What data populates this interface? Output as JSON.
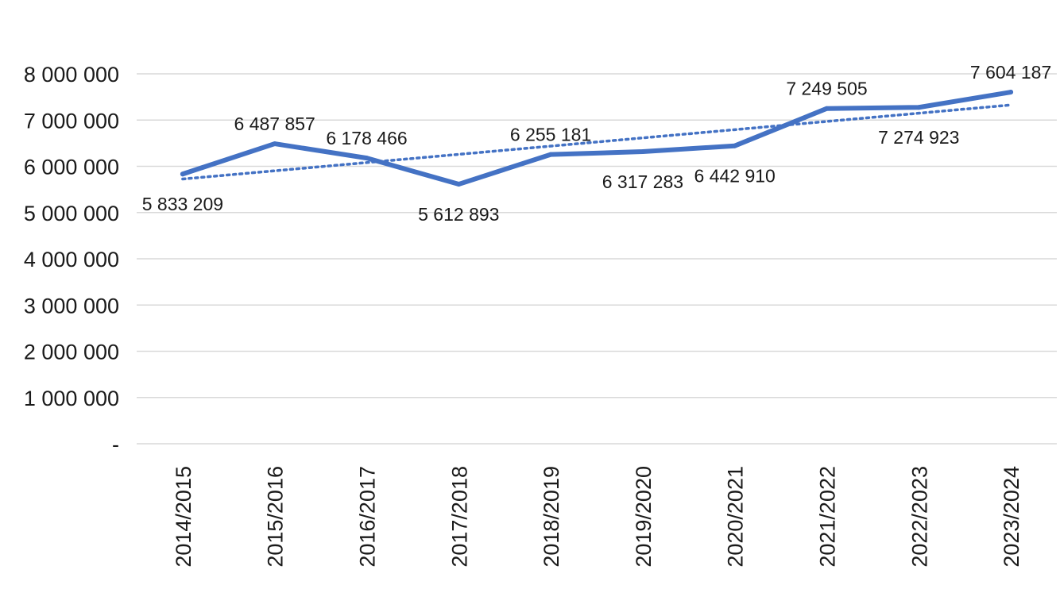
{
  "chart_data": {
    "type": "line",
    "categories": [
      "2014/2015",
      "2015/2016",
      "2016/2017",
      "2017/2018",
      "2018/2019",
      "2019/2020",
      "2020/2021",
      "2021/2022",
      "2022/2023",
      "2023/2024"
    ],
    "series": [
      {
        "values": [
          5833209,
          6487857,
          6178466,
          5612893,
          6255181,
          6317283,
          6442910,
          7249505,
          7274923,
          7604187
        ],
        "labels": [
          "5 833 209",
          "6 487 857",
          "6 178 466",
          "5 612 893",
          "6 255 181",
          "6 317 283",
          "6 442 910",
          "7 249 505",
          "7 274 923",
          "7 604 187"
        ],
        "color": "#4472c4"
      }
    ],
    "trendline": {
      "type": "linear",
      "style": "dotted",
      "color": "#4472c4"
    },
    "y_ticks": [
      {
        "value": 0,
        "label": "-"
      },
      {
        "value": 1000000,
        "label": "1 000 000"
      },
      {
        "value": 2000000,
        "label": "2 000 000"
      },
      {
        "value": 3000000,
        "label": "3 000 000"
      },
      {
        "value": 4000000,
        "label": "4 000 000"
      },
      {
        "value": 5000000,
        "label": "5 000 000"
      },
      {
        "value": 6000000,
        "label": "6 000 000"
      },
      {
        "value": 7000000,
        "label": "7 000 000"
      },
      {
        "value": 8000000,
        "label": "8 000 000"
      }
    ],
    "ylim": [
      0,
      8000000
    ],
    "grid": true,
    "legend": "none",
    "title": "",
    "xlabel": "",
    "ylabel": ""
  }
}
